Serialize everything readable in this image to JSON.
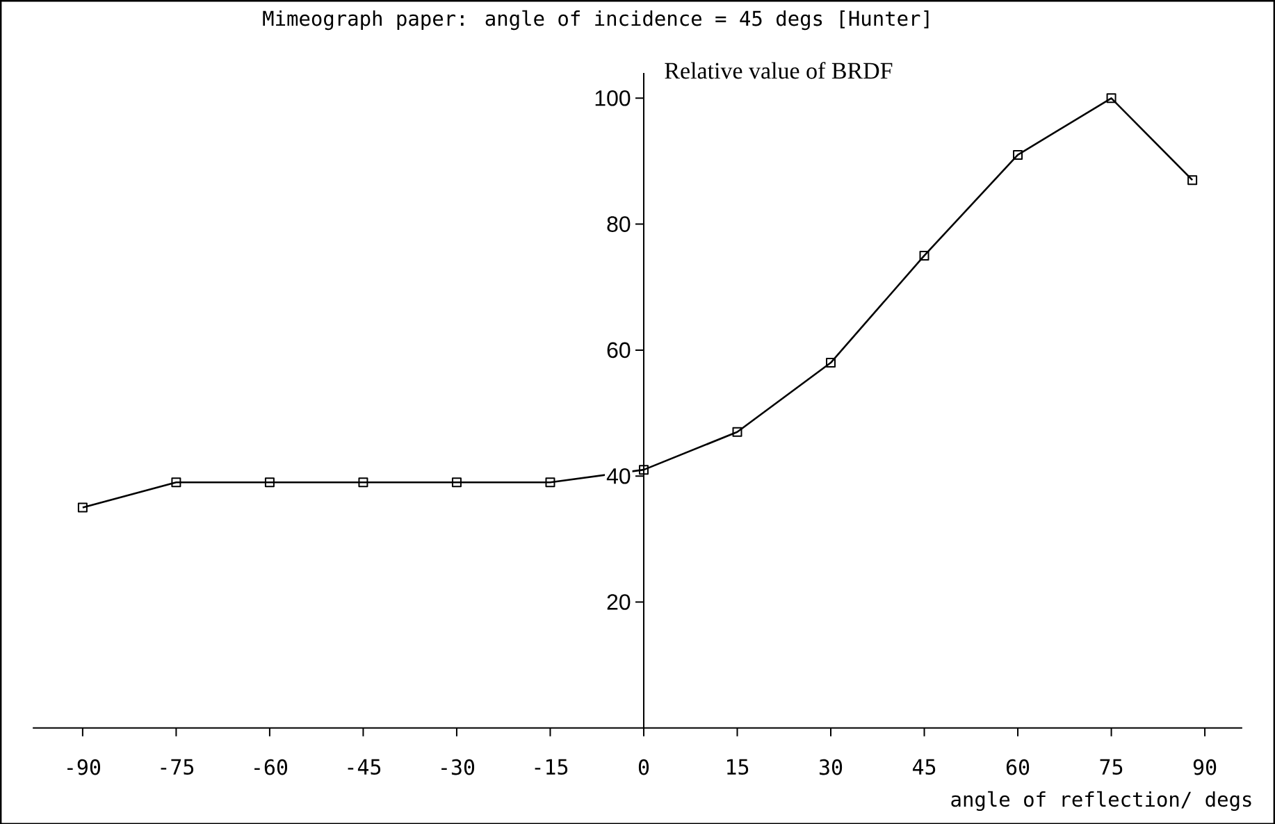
{
  "chart_data": {
    "type": "line",
    "title": "Mimeograph paper: angle of incidence = 45 degs [Hunter]",
    "xlabel": "angle of reflection/ degs",
    "ylabel": "Relative value of BRDF",
    "x": [
      -90,
      -75,
      -60,
      -45,
      -30,
      -15,
      0,
      15,
      30,
      45,
      60,
      75,
      88
    ],
    "series": [
      {
        "color": "#000000",
        "values": [
          35,
          39,
          39,
          39,
          39,
          39,
          41,
          47,
          58,
          75,
          91,
          100,
          87
        ]
      }
    ],
    "xlim": [
      -98,
      96
    ],
    "ylim": [
      0,
      104
    ],
    "xticks": [
      -90,
      -75,
      -60,
      -45,
      -30,
      -15,
      0,
      15,
      30,
      45,
      60,
      75,
      90
    ],
    "yticks": [
      20,
      40,
      60,
      80,
      100
    ],
    "marker": "square",
    "line_style": "solid"
  }
}
